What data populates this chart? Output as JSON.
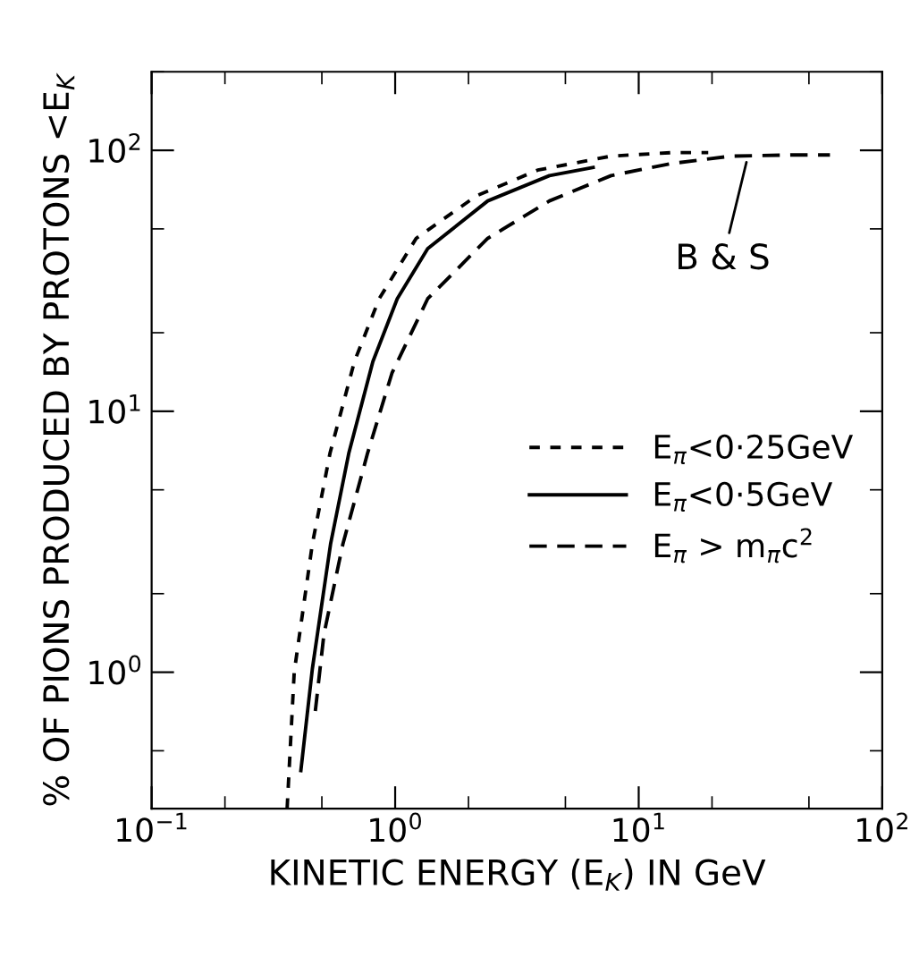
{
  "chart_data": {
    "type": "line",
    "xlabel": "KINETIC ENERGY (E$_{K}$) IN GeV",
    "ylabel": "% OF PIONS PRODUCED BY PROTONS <E$_{K}$",
    "log": "xy",
    "xlim": [
      0.1,
      100
    ],
    "ylim": [
      0.3,
      200
    ],
    "xticks": [
      {
        "value": 0.1,
        "label": "10$^{−1}$"
      },
      {
        "value": 1,
        "label": "10$^{0}$"
      },
      {
        "value": 10,
        "label": "10$^{1}$"
      },
      {
        "value": 100,
        "label": "10$^{2}$"
      }
    ],
    "yticks": [
      {
        "value": 1,
        "label": "10$^{0}$"
      },
      {
        "value": 10,
        "label": "10$^{1}$"
      },
      {
        "value": 100,
        "label": "10$^{2}$"
      }
    ],
    "grid": false,
    "legend": "right",
    "marker": "none",
    "series": [
      {
        "name": "E$_{π}$<0·25GeV",
        "color": "#000000",
        "line_style": "dotted",
        "x": [
          0.36,
          0.385,
          0.457,
          0.54,
          0.68,
          0.86,
          1.22,
          2.16,
          3.85,
          7.7,
          13.6,
          19.3
        ],
        "values": [
          0.3,
          1.0,
          3.1,
          6.9,
          15.5,
          27,
          46,
          67,
          84,
          95,
          98,
          98
        ]
      },
      {
        "name": "E$_{π}$<0·5GeV",
        "color": "#000000",
        "line_style": "solid",
        "x": [
          0.41,
          0.457,
          0.543,
          0.645,
          0.81,
          1.02,
          1.36,
          2.4,
          4.3,
          6.5
        ],
        "values": [
          0.42,
          1.03,
          3.1,
          6.9,
          15.5,
          27,
          42,
          64,
          80,
          86
        ]
      },
      {
        "name": "E$_{π}$ > m$_{π}$c$^{2}$",
        "color": "#000000",
        "line_style": "dashed",
        "x": [
          0.47,
          0.51,
          0.61,
          0.77,
          0.97,
          1.36,
          2.4,
          4.3,
          7.7,
          13.6,
          24,
          43,
          61
        ],
        "values": [
          0.71,
          1.4,
          3.1,
          6.9,
          14,
          27,
          46,
          64,
          80,
          89,
          95,
          96,
          96
        ]
      }
    ],
    "annotations": [
      {
        "text": "B & S",
        "x": 28,
        "y": 94
      }
    ]
  }
}
